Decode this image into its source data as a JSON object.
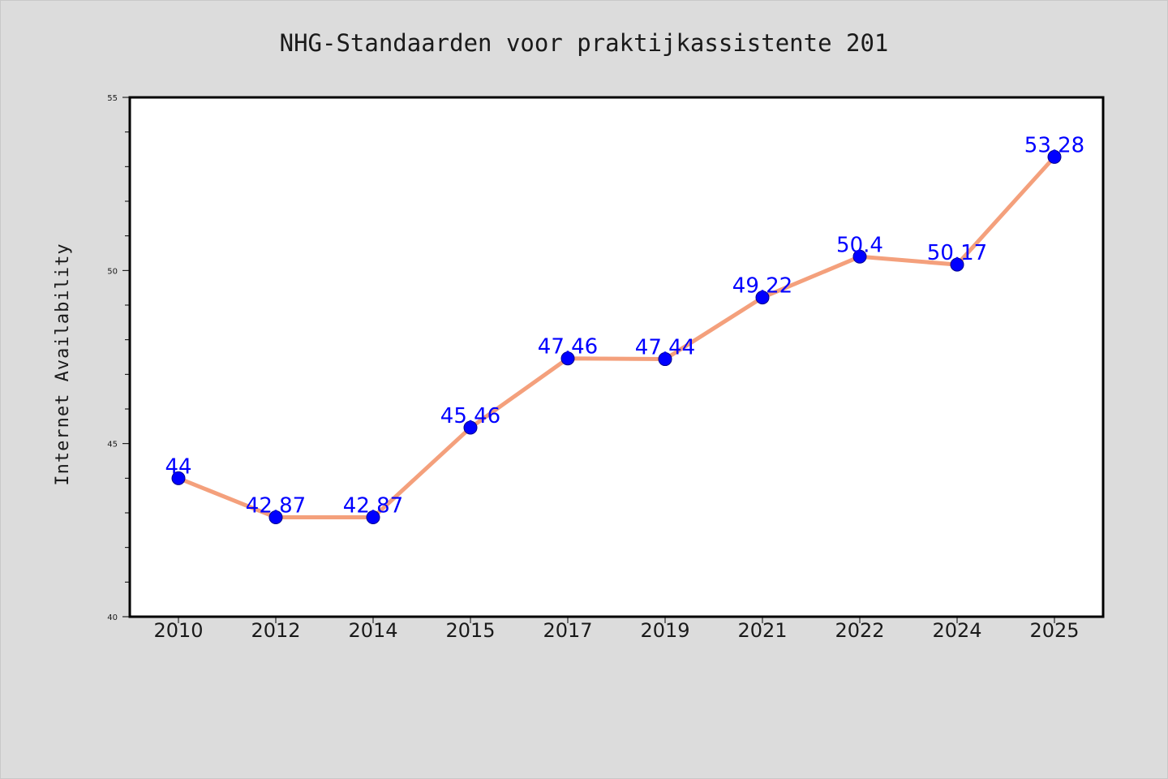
{
  "chart_data": {
    "type": "line",
    "title": "NHG-Standaarden voor praktijkassistente 201",
    "xlabel": "",
    "ylabel": "Internet Availability",
    "categories": [
      "2010",
      "2012",
      "2014",
      "2015",
      "2017",
      "2019",
      "2021",
      "2022",
      "2024",
      "2025"
    ],
    "series": [
      {
        "values": [
          44,
          42.87,
          42.87,
          45.46,
          47.46,
          47.44,
          49.22,
          50.4,
          50.17,
          53.28
        ],
        "labels": [
          "44",
          "42.87",
          "42.87",
          "45.46",
          "47.46",
          "47.44",
          "49.22",
          "50.4",
          "50.17",
          "53.28"
        ]
      }
    ],
    "ylim": [
      40,
      55
    ],
    "yticks": [
      "40",
      "45",
      "50",
      "55"
    ],
    "grid": false,
    "colors": {
      "line": "#f4a07c",
      "marker": "#0000ff",
      "label": "#0000ff",
      "background": "#dcdcdc",
      "plot_background": "#ffffff"
    }
  }
}
